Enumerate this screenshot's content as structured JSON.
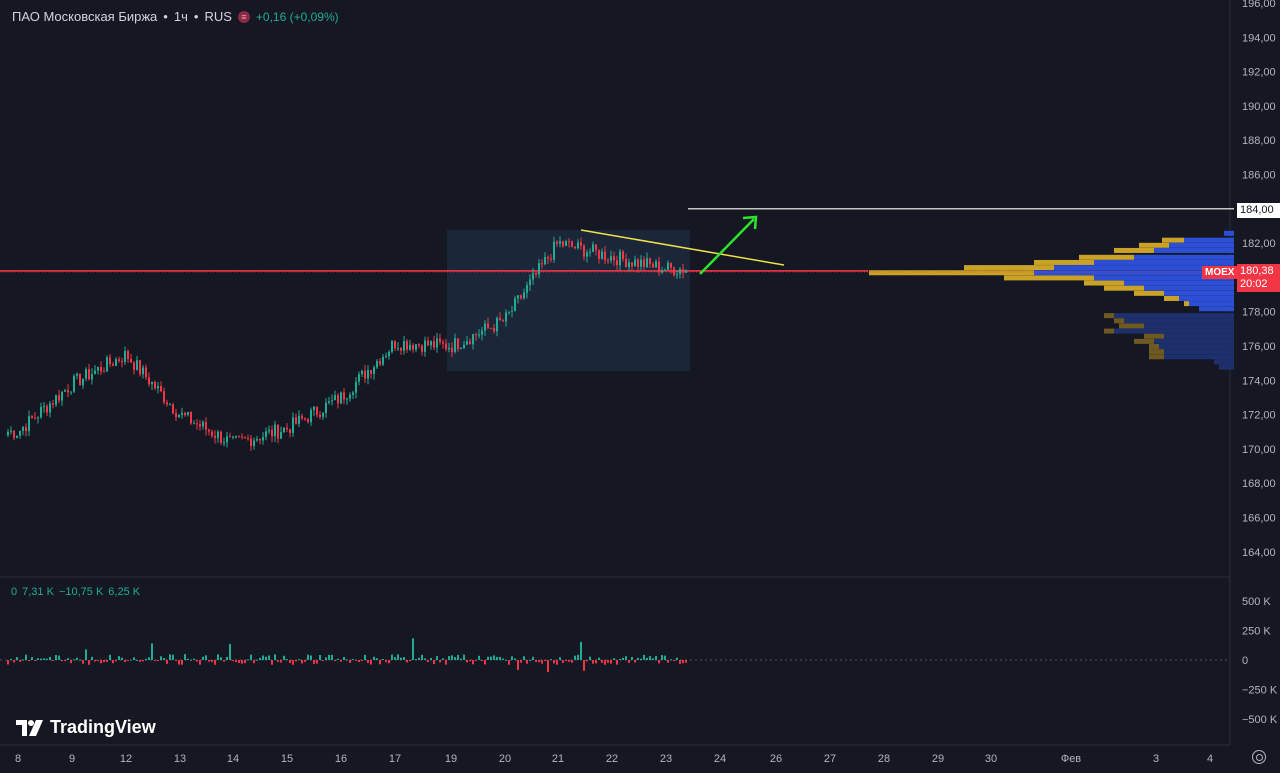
{
  "symbol_legend": {
    "name": "ПАО Московская Биржа",
    "interval": "1ч",
    "exchange": "RUS",
    "change": "+0,16 (+0,09%)",
    "badge_icon": "hamburger-icon"
  },
  "volume_legend": {
    "v1": "0",
    "v2": "7,31 K",
    "v3": "−10,75 K",
    "v4": "6,25 K"
  },
  "price_axis": {
    "labels": [
      "196,00",
      "194,00",
      "192,00",
      "190,00",
      "188,00",
      "186,00",
      "182,00",
      "178,00",
      "176,00",
      "174,00",
      "172,00",
      "170,00",
      "168,00",
      "166,00",
      "164,00"
    ],
    "level_label": "184,00",
    "last_price": "180,38",
    "countdown": "20:02",
    "ticker_tag": "MOEX"
  },
  "volume_axis": {
    "labels": [
      "500 K",
      "250 K",
      "0",
      "−250 K",
      "−500 K"
    ]
  },
  "time_axis": {
    "labels": [
      "8",
      "9",
      "12",
      "13",
      "14",
      "15",
      "16",
      "17",
      "19",
      "20",
      "21",
      "22",
      "23",
      "24",
      "26",
      "27",
      "28",
      "29",
      "30",
      "Фев",
      "3",
      "4"
    ]
  },
  "brand": {
    "name": "TradingView"
  },
  "colors": {
    "background": "#151822",
    "up": "#22ab94",
    "down": "#f23645",
    "trendline": "#f0e24a",
    "arrow": "#2ee32e",
    "level_line": "#ffffff",
    "box": "#1c2a3c",
    "profile_blue": "#2c4fd6",
    "profile_gold": "#c9a227"
  },
  "chart_data": {
    "type": "candlestick",
    "price_range": [
      163,
      196
    ],
    "level_line": 184.0,
    "last_price": 180.38,
    "close_path": [
      {
        "x": "8",
        "y": 171.0
      },
      {
        "x": "9",
        "y": 173.8
      },
      {
        "x": "12",
        "y": 175.5
      },
      {
        "x": "13",
        "y": 172.0
      },
      {
        "x": "14",
        "y": 170.3
      },
      {
        "x": "15",
        "y": 171.2
      },
      {
        "x": "16",
        "y": 173.0
      },
      {
        "x": "17",
        "y": 176.2
      },
      {
        "x": "19",
        "y": 176.0
      },
      {
        "x": "20",
        "y": 177.5
      },
      {
        "x": "21",
        "y": 182.0
      },
      {
        "x": "22",
        "y": 181.2
      },
      {
        "x": "23",
        "y": 180.5
      }
    ]
  }
}
